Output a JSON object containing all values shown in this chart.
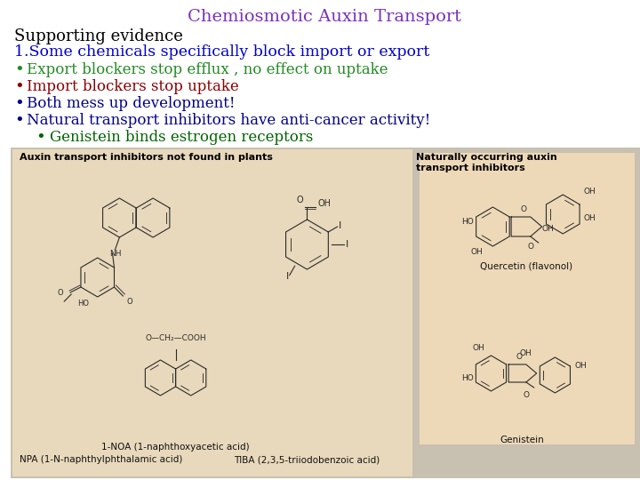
{
  "title": "Chemiosmotic Auxin Transport",
  "title_color": "#7B2FBE",
  "title_fontsize": 14,
  "supporting_evidence": "Supporting evidence",
  "supporting_evidence_color": "#000000",
  "supporting_fontsize": 13,
  "line1": "1.Some chemicals specifically block import or export",
  "line1_color": "#0000CD",
  "line1_fontsize": 12.5,
  "bullets": [
    {
      "text": "Export blockers stop efflux , no effect on uptake",
      "color": "#228B22",
      "fontsize": 12
    },
    {
      "text": "Import blockers stop uptake",
      "color": "#8B0000",
      "fontsize": 12
    },
    {
      "text": "Both mess up development!",
      "color": "#00008B",
      "fontsize": 12
    },
    {
      "text": "Natural transport inhibitors have anti-cancer activity!",
      "color": "#00008B",
      "fontsize": 12
    }
  ],
  "sub_bullet": {
    "text": "Genistein binds estrogen receptors",
    "color": "#006400",
    "fontsize": 12
  },
  "bg_color": "#FFFFFF",
  "left_panel_bg": "#E8D9BC",
  "right_panel_bg": "#D8CBAE",
  "panel_outer_bg": "#C8C0B0",
  "left_panel_label": "Auxin transport inhibitors not found in plants",
  "right_panel_label": "Naturally occurring auxin\ntransport inhibitors",
  "struct_color": "#2a2a2a",
  "label_fontsize": 7.5,
  "panel_label_fontsize": 8
}
